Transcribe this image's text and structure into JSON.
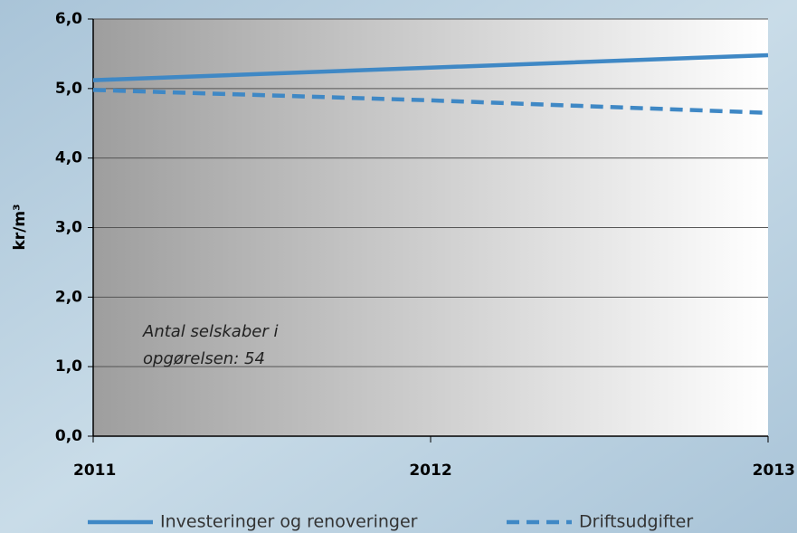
{
  "chart_data": {
    "type": "line",
    "y_label": "kr/m³",
    "annotation": [
      "Antal selskaber i",
      "opgørelsen: 54"
    ],
    "x": [
      2011,
      2012,
      2013
    ],
    "xlim": [
      2011,
      2013
    ],
    "xticks": [
      2011,
      2012,
      2013
    ],
    "ylim": [
      0,
      6
    ],
    "yticks": [
      {
        "value": 0,
        "label": "0,0"
      },
      {
        "value": 1,
        "label": "1,0"
      },
      {
        "value": 2,
        "label": "2,0"
      },
      {
        "value": 3,
        "label": "3,0"
      },
      {
        "value": 4,
        "label": "4,0"
      },
      {
        "value": 5,
        "label": "5,0"
      },
      {
        "value": 6,
        "label": "6,0"
      }
    ],
    "grid": true,
    "legend": "bottom",
    "series": [
      {
        "name": "Investeringer og renoveringer",
        "color": "#3f88c5",
        "style": "solid",
        "values": [
          5.12,
          5.3,
          5.48
        ]
      },
      {
        "name": "Driftsudgifter",
        "color": "#3f88c5",
        "style": "dashed",
        "values": [
          4.98,
          4.83,
          4.65
        ]
      }
    ]
  }
}
